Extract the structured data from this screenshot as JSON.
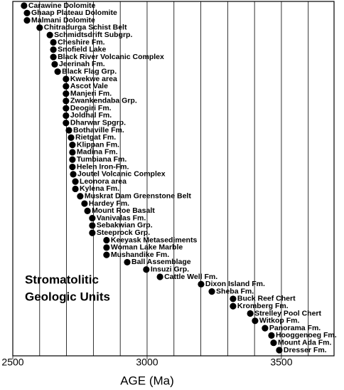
{
  "chart_data": {
    "type": "dot",
    "categories": [
      "Carawine Dolomite",
      "Ghaap Plateau Dolomite",
      "Malmani Dolomite",
      "Chitradurga Schist Belt",
      "Schmidtsdrift Subgrp.",
      "Cheshire Fm.",
      "Snofield Lake",
      "Black River Volcanic Complex",
      "Jeerinah Fm.",
      "Black Flag Grp.",
      "Kwekwe area",
      "Ascot Vale",
      "Manjeri Fm.",
      "Zwankendaba Grp.",
      "Deogiri Fm.",
      "Joldhal Fm.",
      "Dharwar Spgrp.",
      "Bothaville Fm.",
      "Rietgat Fm.",
      "Klippan Fm.",
      "Madina Fm.",
      "Tumbiana Fm.",
      "Helen Iron-Fm.",
      "Joutel Volcanic Complex",
      "Leonora area",
      "Kylena Fm.",
      "Muskrat Dam Greenstone Belt",
      "Hardey Fm.",
      "Mount Roe Basalt",
      "Vanivalas Fm.",
      "Sebakwian Grp.",
      "Steeprock Grp.",
      "Keeyask Metasediments",
      "Woman Lake Marble",
      "Mushandike Fm.",
      "Ball Assemblage",
      "Insuzi Grp.",
      "Cattle Well Fm.",
      "Dixon Island Fm.",
      "Sheba Fm.",
      "Buck Reef Chert",
      "Kromberg Fm.",
      "Strelley Pool Chert",
      "Witkop Fm.",
      "Panorama Fm.",
      "Hooggenoeg Fm.",
      "Mount Ada Fm.",
      "Dresser Fm."
    ],
    "values": [
      2542,
      2553,
      2553,
      2600,
      2638,
      2651,
      2651,
      2651,
      2656,
      2667,
      2698,
      2698,
      2698,
      2698,
      2698,
      2698,
      2698,
      2709,
      2717,
      2722,
      2722,
      2722,
      2722,
      2725,
      2733,
      2733,
      2751,
      2767,
      2778,
      2796,
      2796,
      2796,
      2849,
      2849,
      2849,
      2926,
      2997,
      3048,
      3201,
      3241,
      3320,
      3320,
      3384,
      3402,
      3439,
      3463,
      3471,
      3492
    ],
    "color": "#000000",
    "xlim": [
      2500,
      3696
    ],
    "xticks": [
      2500,
      3000,
      3500
    ],
    "minor_xticks": [
      2600,
      2700,
      2800,
      2900,
      3100,
      3200,
      3300,
      3400,
      3600
    ],
    "grid": true,
    "xlabel": "AGE (Ma)",
    "annotation": [
      "Stromatolitic",
      "Geologic Units"
    ]
  }
}
